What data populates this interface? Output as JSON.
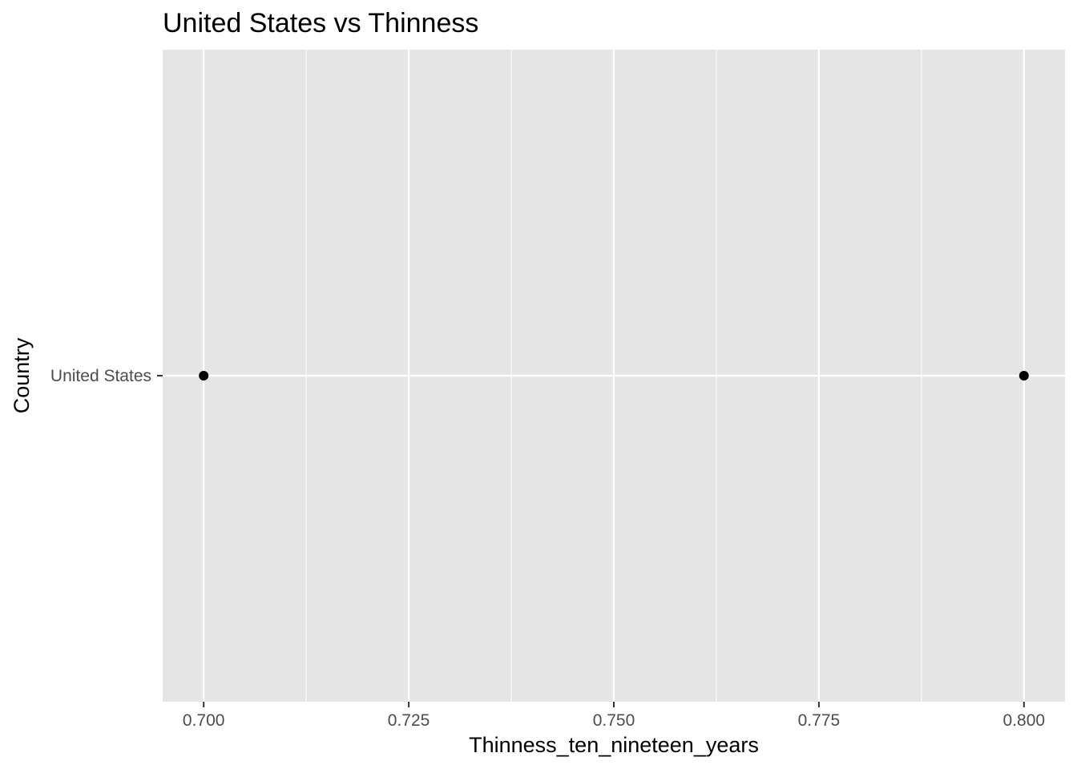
{
  "chart_data": {
    "type": "scatter",
    "title": "United States vs Thinness",
    "xlabel": "Thinness_ten_nineteen_years",
    "ylabel": "Country",
    "xlim": [
      0.695,
      0.805
    ],
    "x_ticks": [
      0.7,
      0.725,
      0.75,
      0.775,
      0.8
    ],
    "x_tick_labels": [
      "0.700",
      "0.725",
      "0.750",
      "0.775",
      "0.800"
    ],
    "y_categories": [
      "United States"
    ],
    "points": [
      {
        "x": 0.7,
        "y": "United States"
      },
      {
        "x": 0.8,
        "y": "United States"
      }
    ],
    "grid": true,
    "legend": "none",
    "colors": {
      "panel": "#e5e5e5",
      "grid": "#ffffff",
      "point": "#000000",
      "tick_text": "#4d4d4d",
      "tick_mark": "#333333"
    }
  }
}
